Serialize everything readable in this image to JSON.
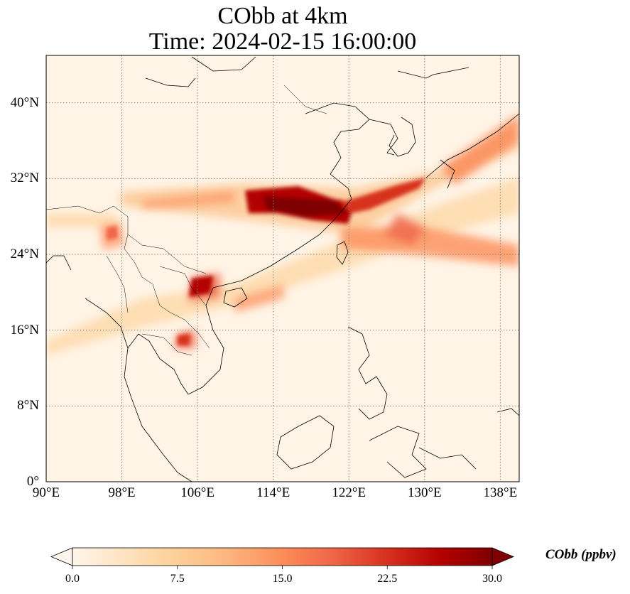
{
  "title": {
    "line1": "CObb at 4km",
    "line2": "Time: 2024-02-15 16:00:00"
  },
  "map": {
    "extent": {
      "lon_min": 90,
      "lon_max": 140,
      "lat_min": 0,
      "lat_max": 45
    },
    "gridlines": "dotted gray",
    "background_color": "#fff4e6",
    "lat_ticks": [
      {
        "value": 40,
        "label": "40°N"
      },
      {
        "value": 32,
        "label": "32°N"
      },
      {
        "value": 24,
        "label": "24°N"
      },
      {
        "value": 16,
        "label": "16°N"
      },
      {
        "value": 8,
        "label": "8°N"
      },
      {
        "value": 0,
        "label": "0°"
      }
    ],
    "lon_ticks": [
      {
        "value": 90,
        "label": "90°E"
      },
      {
        "value": 98,
        "label": "98°E"
      },
      {
        "value": 106,
        "label": "106°E"
      },
      {
        "value": 114,
        "label": "114°E"
      },
      {
        "value": 122,
        "label": "122°E"
      },
      {
        "value": 130,
        "label": "130°E"
      },
      {
        "value": 138,
        "label": "138°E"
      }
    ]
  },
  "colorbar": {
    "label": "CObb (ppbv)",
    "min": 0,
    "max": 30,
    "ticks": [
      "0.0",
      "7.5",
      "15.0",
      "22.5",
      "30.0"
    ],
    "colormap": [
      "#fff5eb",
      "#fdd49e",
      "#fdbb84",
      "#fc8d59",
      "#ef6548",
      "#d7301f",
      "#b30000",
      "#7f0000"
    ]
  }
}
